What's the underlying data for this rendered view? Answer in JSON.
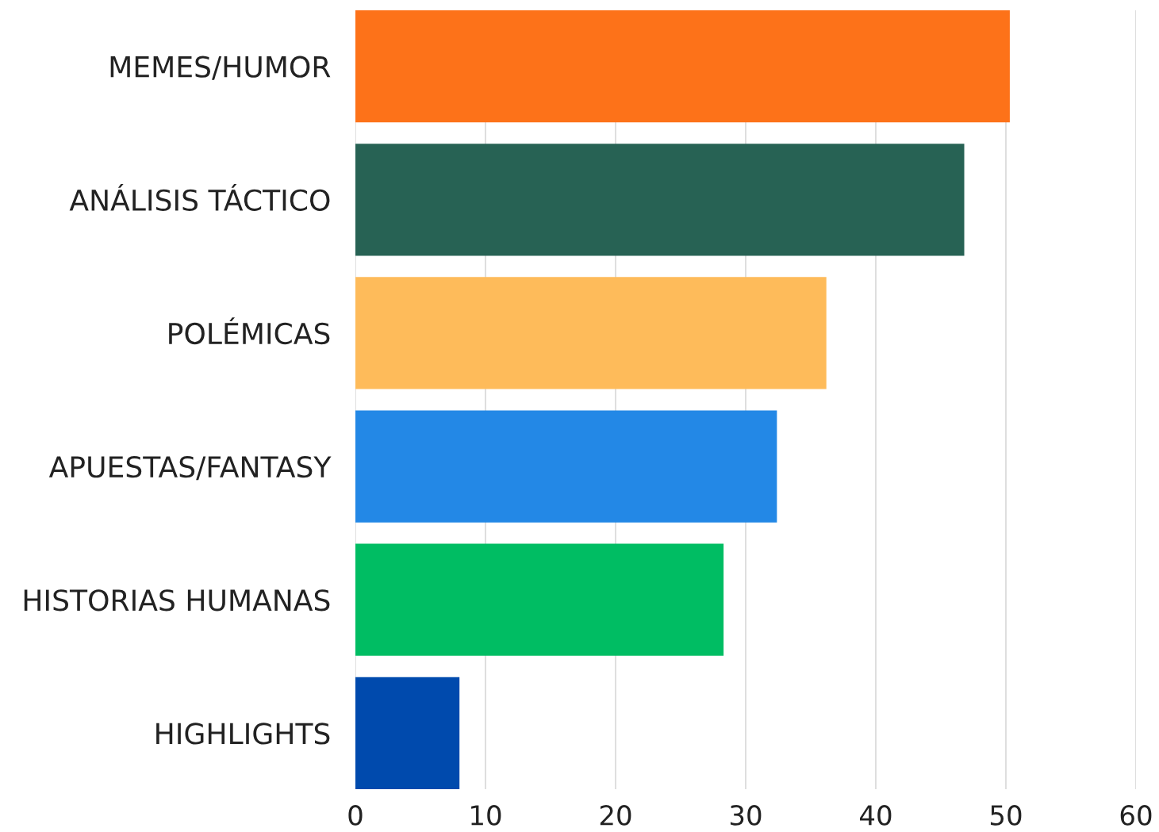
{
  "chart_data": {
    "type": "bar",
    "orientation": "horizontal",
    "categories": [
      "MEMES/HUMOR",
      "ANÁLISIS TÁCTICO",
      "POLÉMICAS",
      "APUESTAS/FANTASY",
      "HISTORIAS HUMANAS",
      "HIGHLIGHTS"
    ],
    "values": [
      50.3,
      46.8,
      36.2,
      32.4,
      28.3,
      8.0
    ],
    "colors": [
      "#fd7219",
      "#276254",
      "#febb5a",
      "#2388e6",
      "#00bd63",
      "#004aad"
    ],
    "xlim": [
      0,
      60
    ],
    "xticks": [
      0,
      10,
      20,
      30,
      40,
      50,
      60
    ],
    "grid": "x"
  }
}
